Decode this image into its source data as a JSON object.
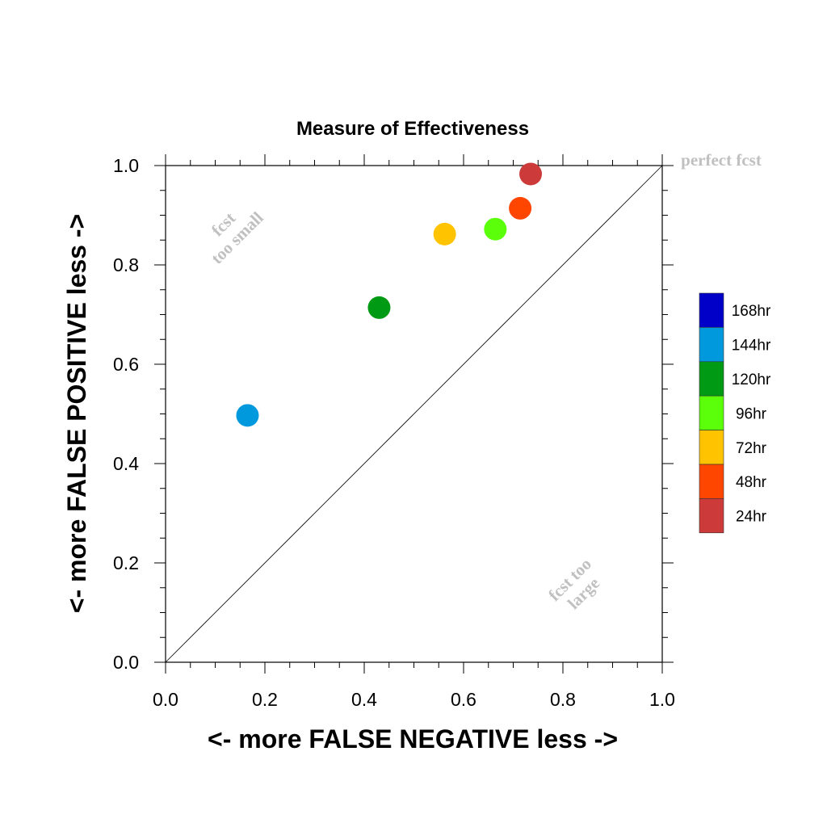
{
  "chart_data": {
    "type": "scatter",
    "title": "Measure of Effectiveness",
    "xlabel": "<- more   FALSE NEGATIVE   less ->",
    "ylabel": "<- more   FALSE POSITIVE   less ->",
    "xlim": [
      0.0,
      1.0
    ],
    "ylim": [
      0.0,
      1.0
    ],
    "xticks": [
      "0.0",
      "0.2",
      "0.4",
      "0.6",
      "0.8",
      "1.0"
    ],
    "yticks": [
      "0.0",
      "0.2",
      "0.4",
      "0.6",
      "0.8",
      "1.0"
    ],
    "diagonal": true,
    "grid": false,
    "legend_position": "right",
    "annotations": {
      "perfect": "perfect fcst",
      "small_1": "fcst",
      "small_2": "too small",
      "large_1": "fcst too",
      "large_2": "large"
    },
    "points": [
      {
        "label": "168hr",
        "color": "#0000c8",
        "x": null,
        "y": null
      },
      {
        "label": "144hr",
        "color": "#0099dd",
        "x": 0.165,
        "y": 0.497
      },
      {
        "label": "120hr",
        "color": "#009a14",
        "x": 0.43,
        "y": 0.714
      },
      {
        "label": "96hr",
        "color": "#5cff0a",
        "x": 0.664,
        "y": 0.872
      },
      {
        "label": "72hr",
        "color": "#ffc300",
        "x": 0.562,
        "y": 0.862
      },
      {
        "label": "48hr",
        "color": "#ff4600",
        "x": 0.714,
        "y": 0.914
      },
      {
        "label": "24hr",
        "color": "#cc3a3a",
        "x": 0.735,
        "y": 0.983
      }
    ]
  }
}
